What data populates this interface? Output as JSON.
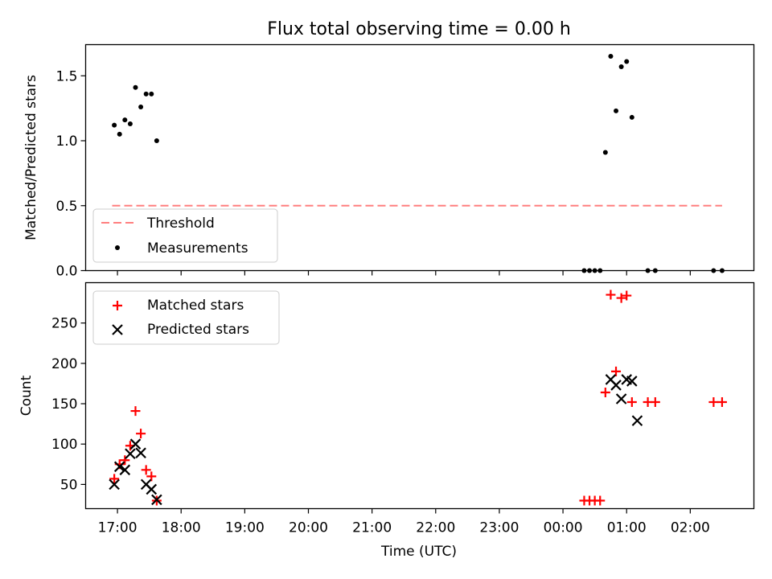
{
  "title": "Flux total observing time = 0.00 h",
  "xlabel": "Time (UTC)",
  "chart_data": [
    {
      "type": "scatter",
      "ylabel": "Matched/Predicted stars",
      "ylim": [
        0,
        1.74
      ],
      "yticks": [
        0.0,
        0.5,
        1.0,
        1.5
      ],
      "ytick_labels": [
        "0.0",
        "0.5",
        "1.0",
        "1.5"
      ],
      "legend": {
        "placement": "lower-left"
      },
      "series": [
        {
          "name": "Threshold",
          "style": "dashed-line",
          "color": "#ff7f7f",
          "x": [
            "16:55",
            "02:30"
          ],
          "y": [
            0.5,
            0.5
          ]
        },
        {
          "name": "Measurements",
          "style": "dot",
          "color": "#000000",
          "x": [
            "16:57",
            "17:02",
            "17:07",
            "17:12",
            "17:17",
            "17:22",
            "17:27",
            "17:32",
            "17:37",
            "00:20",
            "00:25",
            "00:30",
            "00:35",
            "00:40",
            "00:45",
            "00:50",
            "00:55",
            "01:00",
            "01:05",
            "01:20",
            "01:27",
            "02:22",
            "02:30"
          ],
          "y": [
            1.12,
            1.05,
            1.16,
            1.13,
            1.41,
            1.26,
            1.36,
            1.36,
            1.0,
            0.0,
            0.0,
            0.0,
            0.0,
            0.91,
            1.65,
            1.23,
            1.57,
            1.61,
            1.18,
            0.0,
            0.0,
            0.0,
            0.0
          ]
        }
      ]
    },
    {
      "type": "scatter",
      "ylabel": "Count",
      "ylim": [
        20,
        300
      ],
      "yticks": [
        50,
        100,
        150,
        200,
        250
      ],
      "ytick_labels": [
        "50",
        "100",
        "150",
        "200",
        "250"
      ],
      "xlim": [
        "16:30",
        "03:00"
      ],
      "xticks": [
        "17:00",
        "18:00",
        "19:00",
        "20:00",
        "21:00",
        "22:00",
        "23:00",
        "00:00",
        "01:00",
        "02:00"
      ],
      "legend": {
        "placement": "upper-left"
      },
      "series": [
        {
          "name": "Matched stars",
          "marker": "plus",
          "color": "#ff0000",
          "x": [
            "16:57",
            "17:02",
            "17:07",
            "17:12",
            "17:17",
            "17:22",
            "17:27",
            "17:32",
            "17:37",
            "00:20",
            "00:25",
            "00:30",
            "00:35",
            "00:40",
            "00:45",
            "00:50",
            "00:55",
            "01:00",
            "01:05",
            "01:20",
            "01:27",
            "02:22",
            "02:30"
          ],
          "y": [
            57,
            75,
            80,
            98,
            141,
            113,
            68,
            60,
            30,
            30,
            30,
            30,
            30,
            164,
            285,
            190,
            281,
            284,
            152,
            152,
            152,
            152,
            152
          ]
        },
        {
          "name": "Predicted stars",
          "marker": "x",
          "color": "#000000",
          "x": [
            "16:57",
            "17:02",
            "17:07",
            "17:12",
            "17:17",
            "17:22",
            "17:27",
            "17:32",
            "17:37",
            "00:45",
            "00:50",
            "00:55",
            "01:00",
            "01:05",
            "01:10"
          ],
          "y": [
            50,
            72,
            68,
            88,
            100,
            89,
            50,
            44,
            31,
            180,
            173,
            156,
            180,
            178,
            129
          ]
        }
      ]
    }
  ]
}
